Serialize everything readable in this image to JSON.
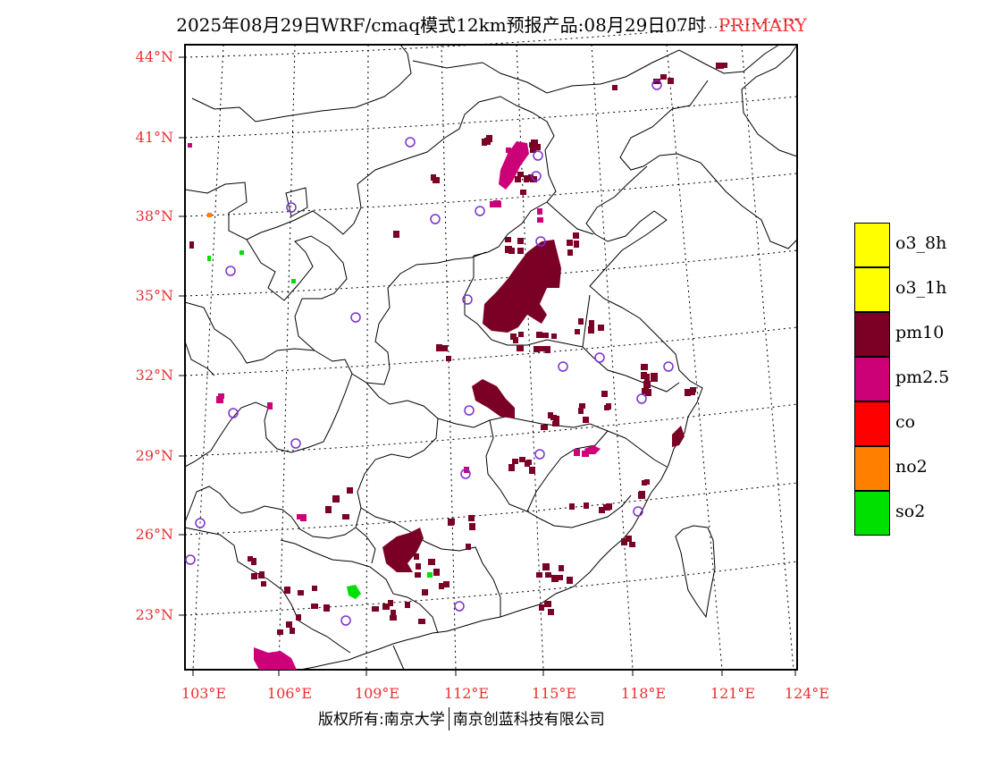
{
  "header": {
    "title": "2025年08月29日WRF/cmaq模式12km预报产品:08月29日07时",
    "title_tag": "PRIMARY"
  },
  "footer": {
    "left": "版权所有:南京大学",
    "right": "南京创蓝科技有限公司"
  },
  "axes": {
    "lat_labels": [
      "44°N",
      "41°N",
      "38°N",
      "35°N",
      "32°N",
      "29°N",
      "26°N",
      "23°N"
    ],
    "lon_labels": [
      "103°E",
      "106°E",
      "109°E",
      "112°E",
      "115°E",
      "118°E",
      "121°E",
      "124°E"
    ]
  },
  "legend": {
    "items": [
      {
        "label": "o3_8h",
        "color": "#ffff00"
      },
      {
        "label": "o3_1h",
        "color": "#ffff00"
      },
      {
        "label": "pm10",
        "color": "#7a0025"
      },
      {
        "label": "pm2.5",
        "color": "#cc0077"
      },
      {
        "label": "co",
        "color": "#ff0000"
      },
      {
        "label": "no2",
        "color": "#ff7f00"
      },
      {
        "label": "so2",
        "color": "#00e000"
      }
    ]
  },
  "colors": {
    "pm10": "#7a0025",
    "pm25": "#cc0077",
    "so2": "#00e000",
    "no2": "#ff7f00",
    "station": "#7b2fd0",
    "axis_label": "#e83030"
  }
}
